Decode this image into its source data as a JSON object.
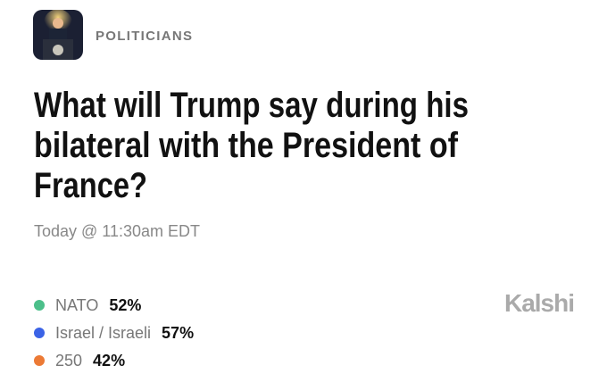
{
  "header": {
    "category": "POLITICIANS"
  },
  "question": {
    "title_lines": [
      "What will Trump say during his",
      "bilateral with the President of",
      "France?"
    ],
    "time": "Today @ 11:30am EDT"
  },
  "outcomes": [
    {
      "name": "NATO",
      "value": "52%",
      "color": "#4cbf8a"
    },
    {
      "name": "Israel / Israeli",
      "value": "57%",
      "color": "#3b63e6"
    },
    {
      "name": "250",
      "value": "42%",
      "color": "#ec7a35"
    }
  ],
  "brand": "Kalshi"
}
